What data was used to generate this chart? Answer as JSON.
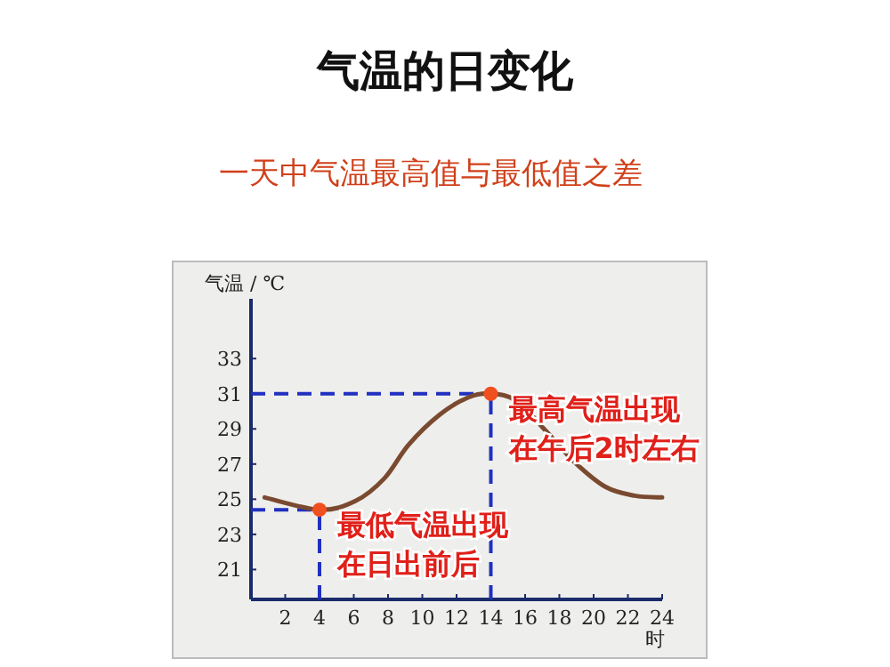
{
  "chart_data": {
    "type": "line",
    "title": "气温的日变化",
    "subtitle": "一天中气温最高值与最低值之差",
    "ylabel": "气温 / ℃",
    "xlabel": "时",
    "xlim": [
      0,
      24
    ],
    "xticks": [
      2,
      4,
      6,
      8,
      10,
      12,
      14,
      16,
      18,
      20,
      22,
      24
    ],
    "ylim": [
      19.3,
      36.4
    ],
    "yticks": [
      21,
      23,
      25,
      27,
      29,
      31,
      33
    ],
    "grid": false,
    "series": [
      {
        "color": "#7a4a30",
        "x": [
          0.8,
          4,
          6.1,
          7.8,
          9.2,
          11,
          12.7,
          14,
          15.5,
          17.2,
          18.9,
          20.7,
          22.4,
          24
        ],
        "values": [
          25.1,
          24.4,
          24.9,
          26.2,
          28.1,
          29.8,
          30.8,
          31,
          30.6,
          28.9,
          27.1,
          25.7,
          25.2,
          25.1
        ],
        "marker": "none"
      },
      {
        "type": "scatter",
        "color": "#f05020",
        "x": [
          4,
          14
        ],
        "values": [
          24.4,
          31
        ],
        "marker": "circle"
      }
    ],
    "ref_lines": [
      {
        "axis": "y",
        "value": 31,
        "color": "#2030c0",
        "line_style": "dashed"
      },
      {
        "axis": "x",
        "value": 14,
        "color": "#2030c0",
        "line_style": "dashed"
      },
      {
        "axis": "y",
        "value": 24.4,
        "color": "#2030c0",
        "line_style": "dashed"
      },
      {
        "axis": "x",
        "value": 4,
        "color": "#2030c0",
        "line_style": "dashed"
      }
    ],
    "annotations": [
      {
        "text": "最高气温出现在午后2时左右",
        "x": 14,
        "y": 31
      },
      {
        "text": "最低气温出现在日出前后",
        "x": 4,
        "y": 24.4
      }
    ]
  }
}
